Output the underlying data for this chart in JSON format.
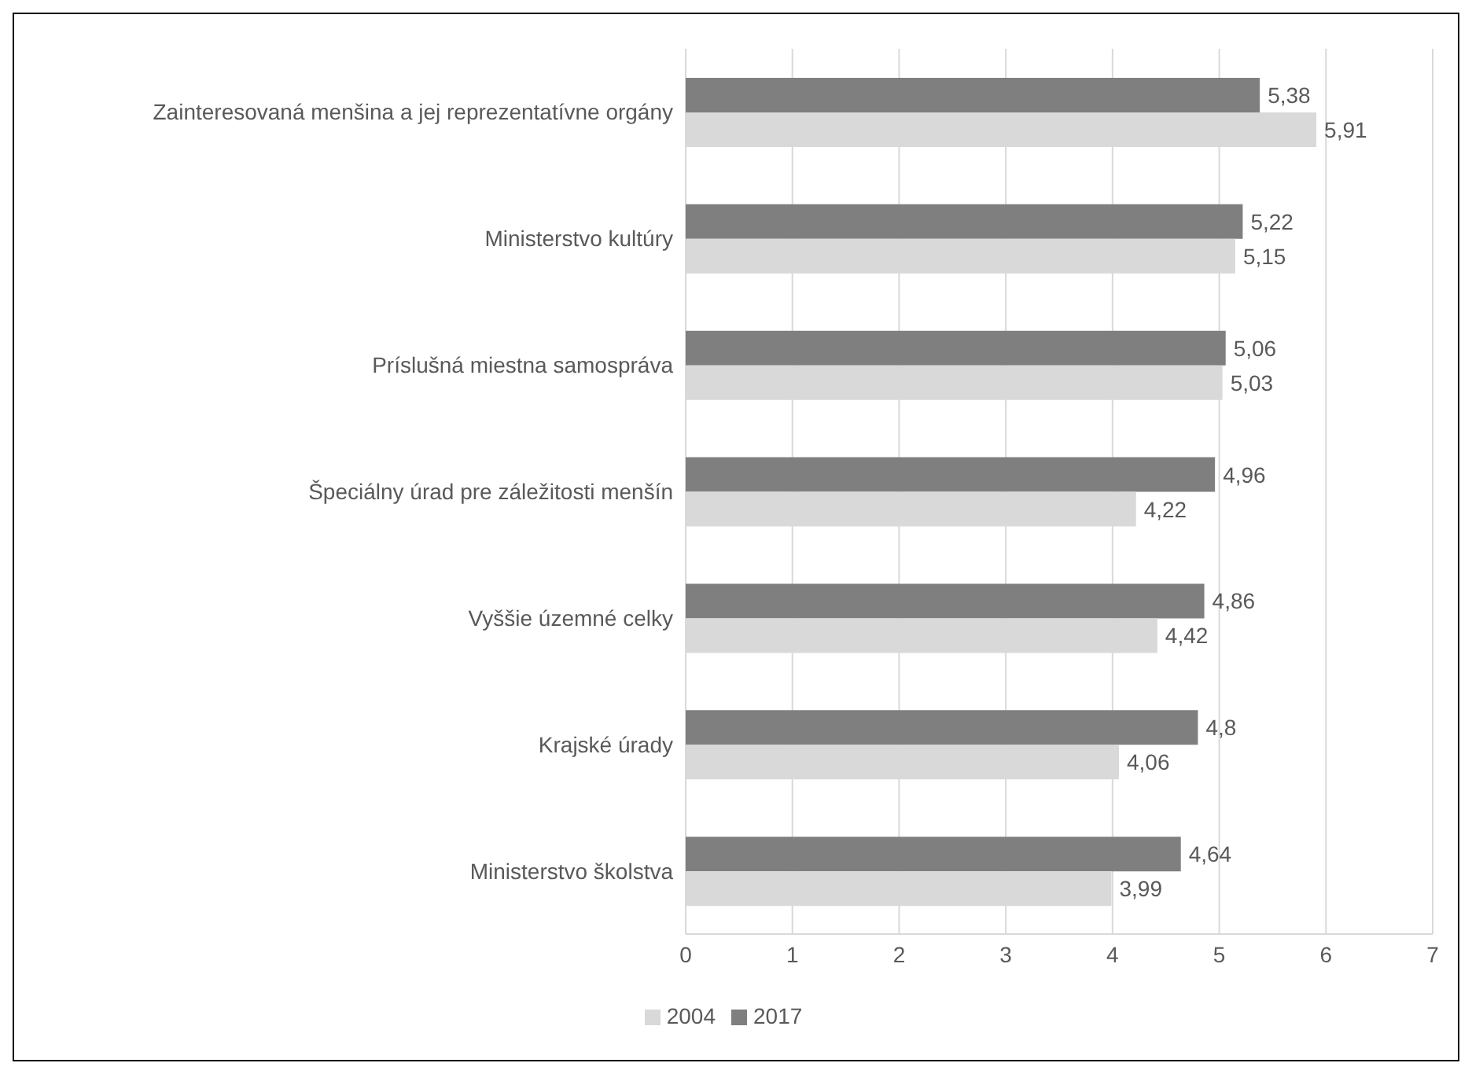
{
  "chart_data": {
    "type": "bar",
    "orientation": "horizontal",
    "categories": [
      "Zainteresovaná menšina a jej reprezentatívne orgány",
      "Ministerstvo kultúry",
      "Príslušná miestna samospráva",
      "Špeciálny úrad pre záležitosti menšín",
      "Vyššie územné celky",
      "Krajské úrady",
      "Ministerstvo školstva"
    ],
    "series": [
      {
        "name": "2017",
        "color": "#7f7f7f",
        "values": [
          5.38,
          5.22,
          5.06,
          4.96,
          4.86,
          4.8,
          4.64
        ],
        "value_labels": [
          "5,38",
          "5,22",
          "5,06",
          "4,96",
          "4,86",
          "4,8",
          "4,64"
        ]
      },
      {
        "name": "2004",
        "color": "#d9d9d9",
        "values": [
          5.91,
          5.15,
          5.03,
          4.22,
          4.42,
          4.06,
          3.99
        ],
        "value_labels": [
          "5,91",
          "5,15",
          "5,03",
          "4,22",
          "4,42",
          "4,06",
          "3,99"
        ]
      }
    ],
    "xlim": [
      0,
      7
    ],
    "xticks": [
      0,
      1,
      2,
      3,
      4,
      5,
      6,
      7
    ],
    "grid": "x",
    "legend": "bottom"
  }
}
